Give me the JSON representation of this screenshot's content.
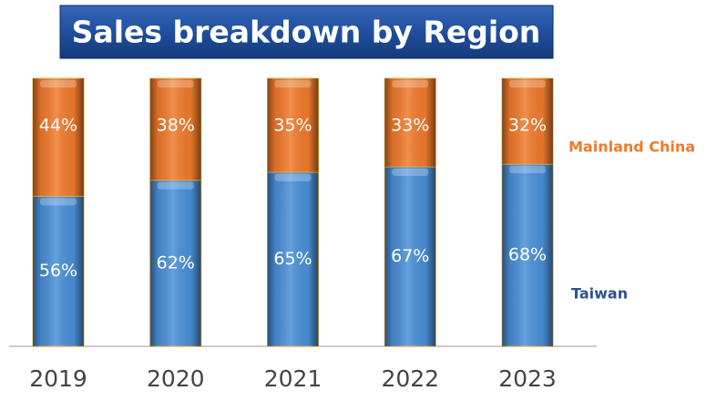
{
  "chart_data": {
    "type": "stacked_bar",
    "title": "Sales breakdown by Region",
    "categories": [
      "2019",
      "2020",
      "2021",
      "2022",
      "2023"
    ],
    "series": [
      {
        "name": "Taiwan",
        "color": "#4a8fd8",
        "label_color": "#2f4f8f",
        "values": [
          56,
          62,
          65,
          67,
          68
        ],
        "value_labels": [
          "56%",
          "62%",
          "65%",
          "67%",
          "68%"
        ]
      },
      {
        "name": "Mainland China",
        "color": "#f07a2c",
        "label_color": "#ec7a2c",
        "values": [
          44,
          38,
          35,
          33,
          32
        ],
        "value_labels": [
          "44%",
          "38%",
          "35%",
          "33%",
          "32%"
        ]
      }
    ],
    "ylim": [
      0,
      100
    ]
  }
}
